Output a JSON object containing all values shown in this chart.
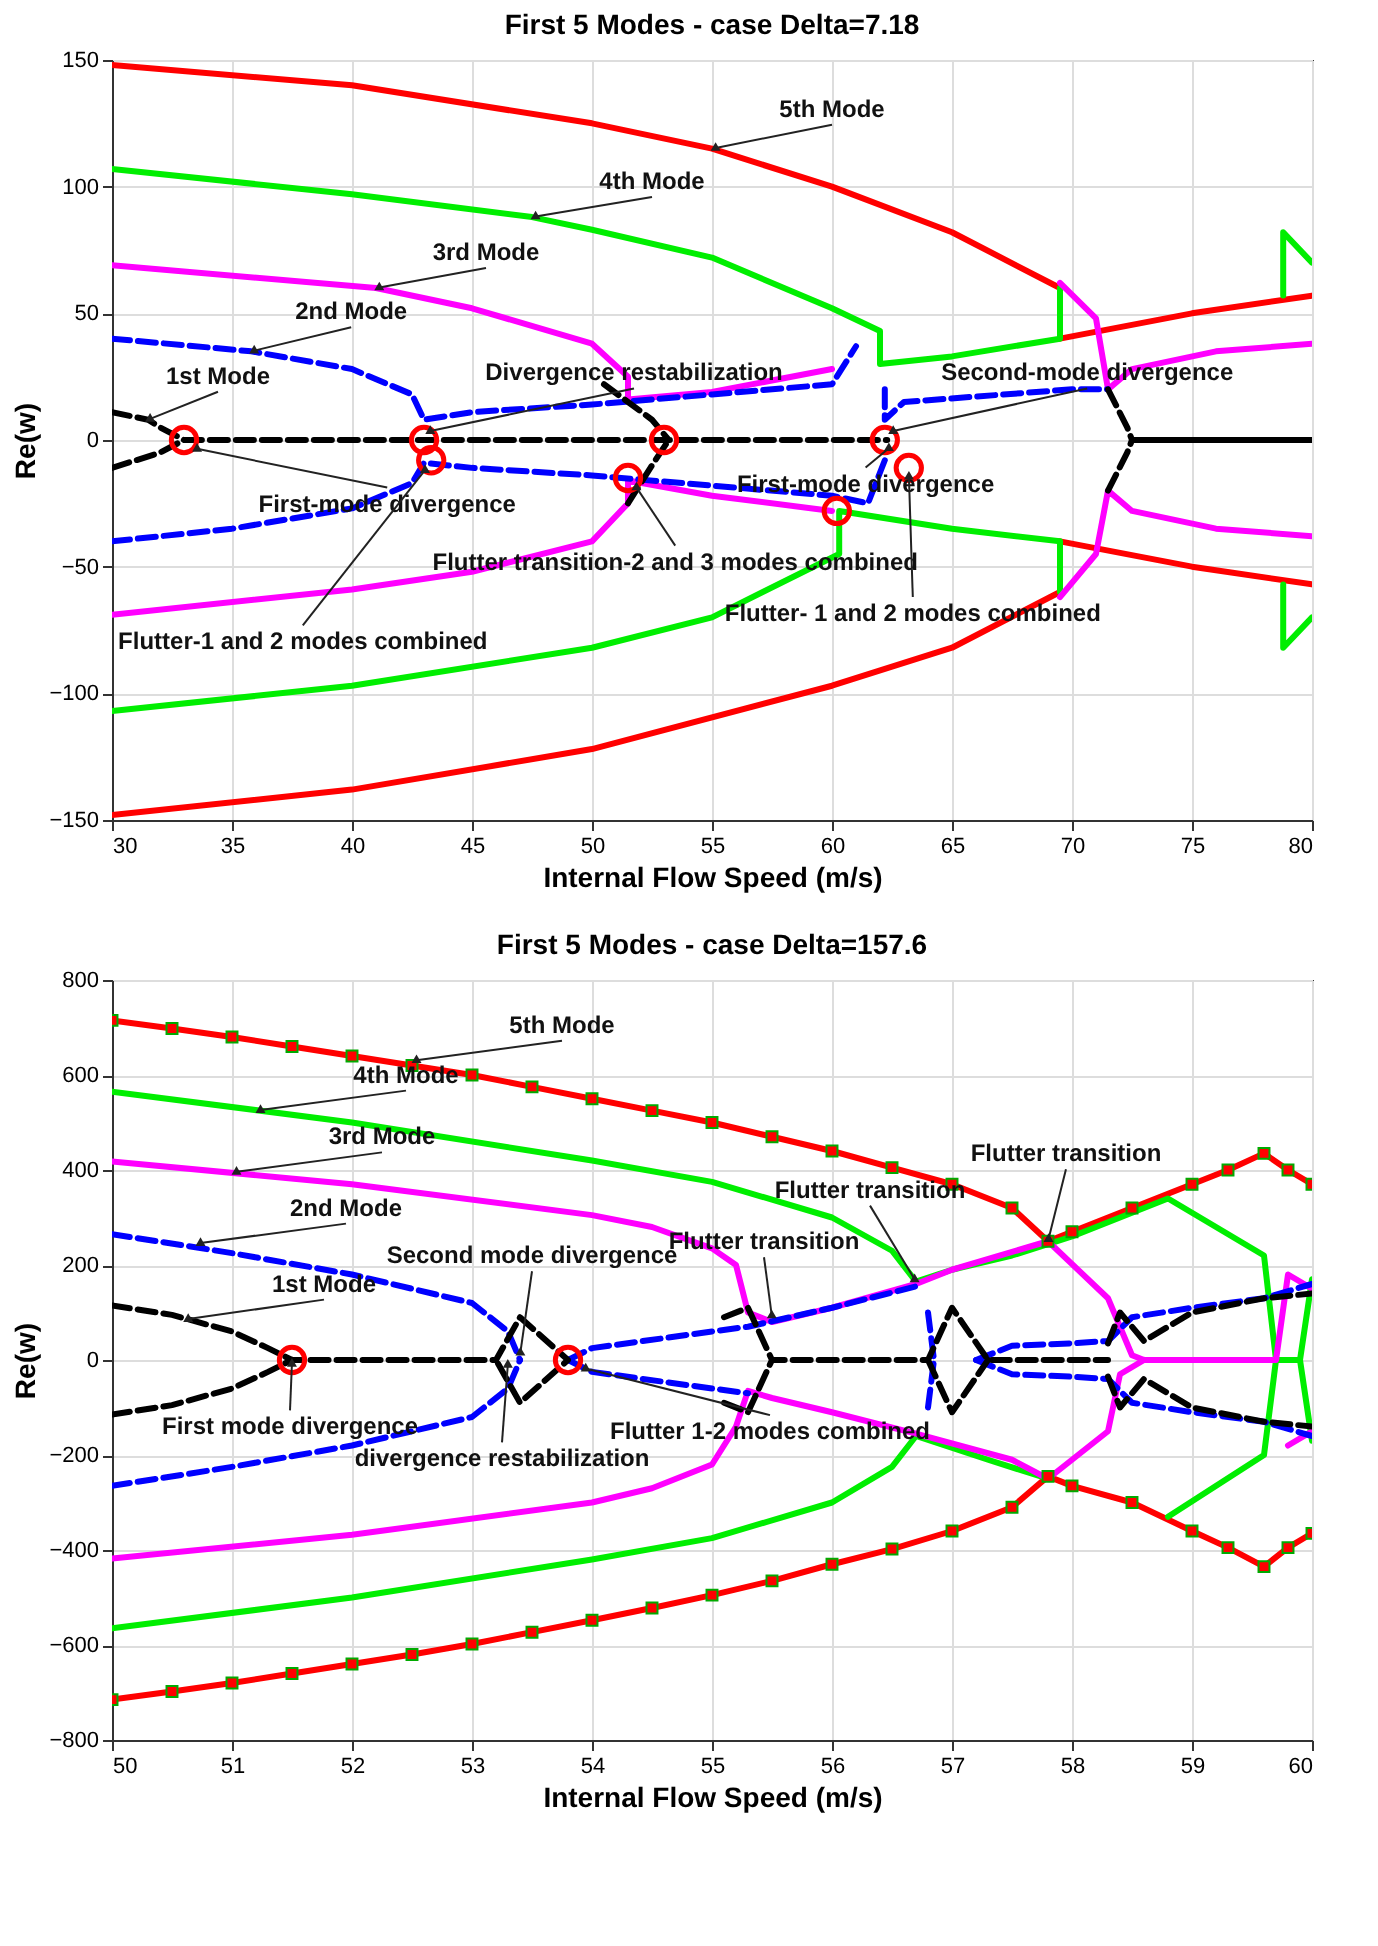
{
  "chart_data": [
    {
      "type": "line",
      "title": "First 5 Modes - case Delta=7.18",
      "xlabel": "Internal Flow Speed (m/s)",
      "ylabel": "Re(w)",
      "xlim": [
        30,
        80
      ],
      "ylim": [
        -150,
        150
      ],
      "xticks": [
        30,
        35,
        40,
        45,
        50,
        55,
        60,
        65,
        70,
        75,
        80
      ],
      "yticks": [
        -150,
        -100,
        -50,
        0,
        50,
        100,
        150
      ],
      "grid": true,
      "series": [
        {
          "color": "#ff0000",
          "line_style": "solid",
          "x": [
            30,
            40,
            50,
            55,
            60,
            65,
            69.5,
            null,
            69.5,
            75,
            80
          ],
          "values": [
            148,
            140,
            125,
            115,
            100,
            82,
            60,
            null,
            40,
            50,
            57
          ]
        },
        {
          "color": "#ff0000",
          "line_style": "solid",
          "x": [
            30,
            40,
            50,
            60,
            65,
            69.5,
            null,
            69.5,
            75,
            80
          ],
          "values": [
            -148,
            -138,
            -122,
            -97,
            -82,
            -60,
            null,
            -40,
            -50,
            -57
          ]
        },
        {
          "color": "#00ee00",
          "line_style": "solid",
          "x": [
            30,
            40,
            47.5,
            50,
            55,
            60,
            62,
            62,
            65,
            69.5,
            69.5,
            null,
            78.8,
            78.8,
            80
          ],
          "values": [
            107,
            97,
            88,
            83,
            72,
            52,
            43,
            30,
            33,
            40,
            60,
            null,
            57,
            82,
            70
          ]
        },
        {
          "color": "#00ee00",
          "line_style": "solid",
          "x": [
            30,
            40,
            50,
            55,
            60.3,
            60.3,
            65,
            69.5,
            69.5,
            null,
            78.8,
            78.8,
            80
          ],
          "values": [
            -107,
            -97,
            -82,
            -70,
            -45,
            -28,
            -35,
            -40,
            -60,
            null,
            -57,
            -82,
            -70
          ]
        },
        {
          "color": "#ff00ff",
          "line_style": "solid",
          "x": [
            30,
            41,
            45,
            50,
            51.5,
            51.5,
            55,
            60,
            null,
            69.5,
            71,
            71.5,
            72.5,
            76,
            80
          ],
          "values": [
            69,
            60,
            52,
            38,
            25,
            16,
            19,
            28,
            null,
            62,
            48,
            20,
            28,
            35,
            38
          ]
        },
        {
          "color": "#ff00ff",
          "line_style": "solid",
          "x": [
            30,
            40,
            45,
            50,
            51.5,
            51.5,
            55,
            60,
            null,
            69.5,
            71,
            71.5,
            72.5,
            76,
            80
          ],
          "values": [
            -69,
            -59,
            -52,
            -40,
            -25,
            -16,
            -22,
            -28,
            null,
            -62,
            -45,
            -20,
            -28,
            -35,
            -38
          ]
        },
        {
          "color": "#0000ff",
          "line_style": "dashed",
          "x": [
            30,
            35.8,
            40,
            42.5,
            43,
            45,
            50,
            55,
            60,
            61,
            null,
            62.2,
            62.2,
            63,
            70,
            71.5
          ],
          "values": [
            40,
            35,
            28,
            18,
            8,
            11,
            14,
            18,
            22,
            37,
            null,
            20,
            8,
            15,
            20,
            20
          ]
        },
        {
          "color": "#0000ff",
          "line_style": "dashed",
          "x": [
            30,
            35,
            40,
            42.5,
            43,
            45,
            50,
            55,
            60,
            61.5,
            62.2
          ],
          "values": [
            -40,
            -35,
            -27,
            -17,
            -9,
            -11,
            -14,
            -18,
            -22,
            -25,
            -8
          ]
        },
        {
          "color": "#000000",
          "line_style": "dashed",
          "x": [
            30,
            31.5,
            32,
            33,
            62.3,
            null,
            50.5,
            52.5,
            53.2,
            null,
            71.5,
            72.3,
            72.5
          ],
          "values": [
            11,
            8,
            5,
            0,
            0,
            null,
            22,
            8,
            0,
            null,
            20,
            5,
            0
          ]
        },
        {
          "color": "#000000",
          "line_style": "dashed",
          "x": [
            30,
            32,
            33,
            null,
            51.5,
            52.5,
            53.2,
            null,
            71.5,
            72.3,
            72.5
          ],
          "values": [
            -11,
            -5,
            0,
            null,
            -25,
            -10,
            0,
            null,
            -20,
            -5,
            0
          ]
        },
        {
          "color": "#000000",
          "line_style": "solid",
          "x": [
            72.5,
            80
          ],
          "values": [
            0,
            0
          ]
        },
        {
          "type": "scatter",
          "marker": "circle",
          "color": "#ff0000",
          "x": [
            33,
            43,
            43.3,
            51.5,
            53,
            60.2,
            62.2,
            63.2
          ],
          "values": [
            0,
            0,
            -8,
            -15,
            0,
            -28,
            0,
            -11
          ]
        }
      ],
      "annotations": [
        {
          "text": "5th Mode",
          "x": 55,
          "y": 115
        },
        {
          "text": "4th Mode",
          "x": 47.5,
          "y": 88
        },
        {
          "text": "3rd Mode",
          "x": 41,
          "y": 60
        },
        {
          "text": "2nd Mode",
          "x": 35.8,
          "y": 35
        },
        {
          "text": "1st Mode",
          "x": 31.5,
          "y": 8
        },
        {
          "text": "Divergence restabilization",
          "x": 43,
          "y": 3
        },
        {
          "text": "Second-mode divergence",
          "x": 62.3,
          "y": 3
        },
        {
          "text": "First-mode divergence",
          "x": 33.3,
          "y": -3
        },
        {
          "text": "Flutter transition-2 and 3 modes combined",
          "x": 51.8,
          "y": -18
        },
        {
          "text": "Flutter-1 and 2 modes combined",
          "x": 43.2,
          "y": -10
        },
        {
          "text": "First-mode divergence",
          "x": 62.4,
          "y": -3
        },
        {
          "text": "Flutter- 1 and 2 modes combined",
          "x": 63.2,
          "y": -13
        }
      ]
    },
    {
      "type": "line",
      "title": "First 5 Modes - case Delta=157.6",
      "xlabel": "Internal Flow Speed (m/s)",
      "ylabel": "Re(w)",
      "xlim": [
        50,
        60
      ],
      "ylim": [
        -800,
        800
      ],
      "xticks": [
        50,
        51,
        52,
        53,
        54,
        55,
        56,
        57,
        58,
        59,
        60
      ],
      "yticks": [
        -800,
        -600,
        -400,
        -200,
        0,
        200,
        400,
        600,
        800
      ],
      "grid": true,
      "series": [
        {
          "color": "#ff0000",
          "line_style": "solid",
          "marker": "square",
          "x": [
            50,
            50.5,
            51,
            51.5,
            52,
            52.5,
            53,
            53.5,
            54,
            54.5,
            55,
            55.5,
            56,
            56.5,
            57,
            57.5,
            57.8,
            58,
            58.5,
            59,
            59.3,
            59.6,
            59.8,
            60
          ],
          "values": [
            715,
            698,
            680,
            660,
            640,
            620,
            600,
            575,
            550,
            525,
            500,
            470,
            440,
            405,
            370,
            320,
            250,
            270,
            320,
            370,
            400,
            435,
            400,
            370
          ]
        },
        {
          "color": "#ff0000",
          "line_style": "solid",
          "marker": "square",
          "x": [
            50,
            50.5,
            51,
            51.5,
            52,
            52.5,
            53,
            53.5,
            54,
            54.5,
            55,
            55.5,
            56,
            56.5,
            57,
            57.5,
            57.8,
            58,
            58.5,
            59,
            59.3,
            59.6,
            59.8,
            60
          ],
          "values": [
            -715,
            -698,
            -680,
            -660,
            -640,
            -620,
            -598,
            -573,
            -548,
            -522,
            -495,
            -465,
            -430,
            -398,
            -360,
            -310,
            -245,
            -265,
            -300,
            -360,
            -395,
            -435,
            -395,
            -365
          ]
        },
        {
          "color": "#00ee00",
          "line_style": "solid",
          "x": [
            50,
            52,
            54,
            55,
            56,
            56.5,
            56.7,
            57,
            57.5,
            58,
            58.5,
            58.8,
            59.6,
            59.7,
            59.9,
            60
          ],
          "values": [
            565,
            500,
            420,
            375,
            300,
            230,
            165,
            190,
            220,
            260,
            310,
            340,
            220,
            0,
            0,
            170
          ]
        },
        {
          "color": "#00ee00",
          "line_style": "solid",
          "x": [
            50,
            52,
            54,
            55,
            56,
            56.5,
            56.7,
            57.3,
            57.8,
            null,
            58.8,
            59.6,
            59.7,
            null,
            59.9,
            60
          ],
          "values": [
            -565,
            -500,
            -420,
            -375,
            -300,
            -225,
            -160,
            -210,
            -250,
            null,
            -330,
            -200,
            0,
            null,
            0,
            -170
          ]
        },
        {
          "color": "#ff00ff",
          "line_style": "solid",
          "x": [
            50,
            52,
            54,
            54.5,
            55,
            55.2,
            55.3,
            55.5,
            56,
            56.7,
            57,
            57.8,
            58.3,
            58.5,
            58.6,
            59.7,
            59.8,
            60
          ],
          "values": [
            418,
            370,
            305,
            280,
            235,
            200,
            100,
            80,
            110,
            160,
            190,
            250,
            130,
            10,
            0,
            0,
            180,
            150
          ]
        },
        {
          "color": "#ff00ff",
          "line_style": "solid",
          "x": [
            50,
            52,
            54,
            54.5,
            55,
            55.2,
            55.3,
            55.5,
            56,
            56.7,
            57.5,
            57.8,
            58.3,
            58.4,
            58.6,
            null,
            59.8,
            60
          ],
          "values": [
            -418,
            -368,
            -300,
            -270,
            -220,
            -140,
            -65,
            -80,
            -110,
            -155,
            -210,
            -250,
            -150,
            -30,
            0,
            null,
            -180,
            -150
          ]
        },
        {
          "color": "#0000ff",
          "line_style": "dashed",
          "x": [
            50,
            51,
            52,
            53,
            53.3,
            53.4,
            null,
            53.8,
            54,
            55,
            55.3,
            56,
            56.7,
            null,
            56.8,
            56.85,
            null,
            57.2,
            57.5,
            58,
            58.3,
            58.5,
            59,
            59.6,
            60
          ],
          "values": [
            265,
            225,
            180,
            120,
            60,
            0,
            null,
            0,
            25,
            60,
            70,
            110,
            155,
            null,
            100,
            0,
            null,
            0,
            30,
            35,
            40,
            90,
            110,
            130,
            160
          ]
        },
        {
          "color": "#0000ff",
          "line_style": "dashed",
          "x": [
            50,
            51,
            52,
            53,
            53.3,
            53.4,
            null,
            53.8,
            54,
            55,
            55.3,
            null,
            56.8,
            56.85,
            null,
            57.2,
            57.5,
            58,
            58.3,
            58.5,
            59,
            59.6,
            60
          ],
          "values": [
            -265,
            -225,
            -180,
            -120,
            -60,
            0,
            null,
            0,
            -25,
            -60,
            -70,
            null,
            -100,
            0,
            null,
            0,
            -30,
            -35,
            -40,
            -90,
            -110,
            -130,
            -160
          ]
        },
        {
          "color": "#000000",
          "line_style": "dashed",
          "x": [
            50,
            50.5,
            51,
            51.3,
            51.5,
            53.2,
            53.4,
            53.8,
            53.4,
            53.2,
            null,
            55.1,
            55.3,
            55.5,
            56.8,
            57,
            57.3,
            58.3,
            null,
            58.3,
            58.4,
            58.6,
            59,
            59.6,
            60,
            null,
            50,
            50.5,
            51,
            51.3,
            51.5,
            null,
            55.1,
            55.3,
            55.5,
            null,
            56.8,
            57,
            57.3,
            null,
            58.3,
            58.4,
            58.6,
            59,
            59.6,
            60
          ],
          "values": [
            115,
            95,
            60,
            25,
            0,
            0,
            90,
            0,
            -90,
            0,
            null,
            90,
            110,
            0,
            0,
            110,
            0,
            0,
            null,
            35,
            100,
            40,
            100,
            130,
            140,
            null,
            -115,
            -95,
            -60,
            -25,
            0,
            null,
            -90,
            -110,
            0,
            null,
            0,
            -110,
            0,
            null,
            -35,
            -100,
            -40,
            -100,
            -130,
            -140
          ]
        },
        {
          "type": "scatter",
          "marker": "circle",
          "color": "#ff0000",
          "x": [
            51.5,
            53.8
          ],
          "values": [
            0,
            0
          ]
        }
      ],
      "annotations": [
        {
          "text": "5th Mode",
          "x": 52.5,
          "y": 630
        },
        {
          "text": "4th Mode",
          "x": 51.2,
          "y": 525
        },
        {
          "text": "3rd Mode",
          "x": 51,
          "y": 395
        },
        {
          "text": "2nd Mode",
          "x": 50.7,
          "y": 245
        },
        {
          "text": "1st Mode",
          "x": 50.6,
          "y": 85
        },
        {
          "text": "Second mode divergence",
          "x": 53.4,
          "y": 10
        },
        {
          "text": "Flutter transition",
          "x": 55.5,
          "y": 90
        },
        {
          "text": "Flutter transition",
          "x": 56.7,
          "y": 165
        },
        {
          "text": "Flutter transition",
          "x": 57.8,
          "y": 250
        },
        {
          "text": "First mode divergence",
          "x": 51.5,
          "y": -5
        },
        {
          "text": "divergence restabilization",
          "x": 53.3,
          "y": -5
        },
        {
          "text": "Flutter 1-2 modes combined",
          "x": 53.9,
          "y": -15
        }
      ]
    }
  ]
}
